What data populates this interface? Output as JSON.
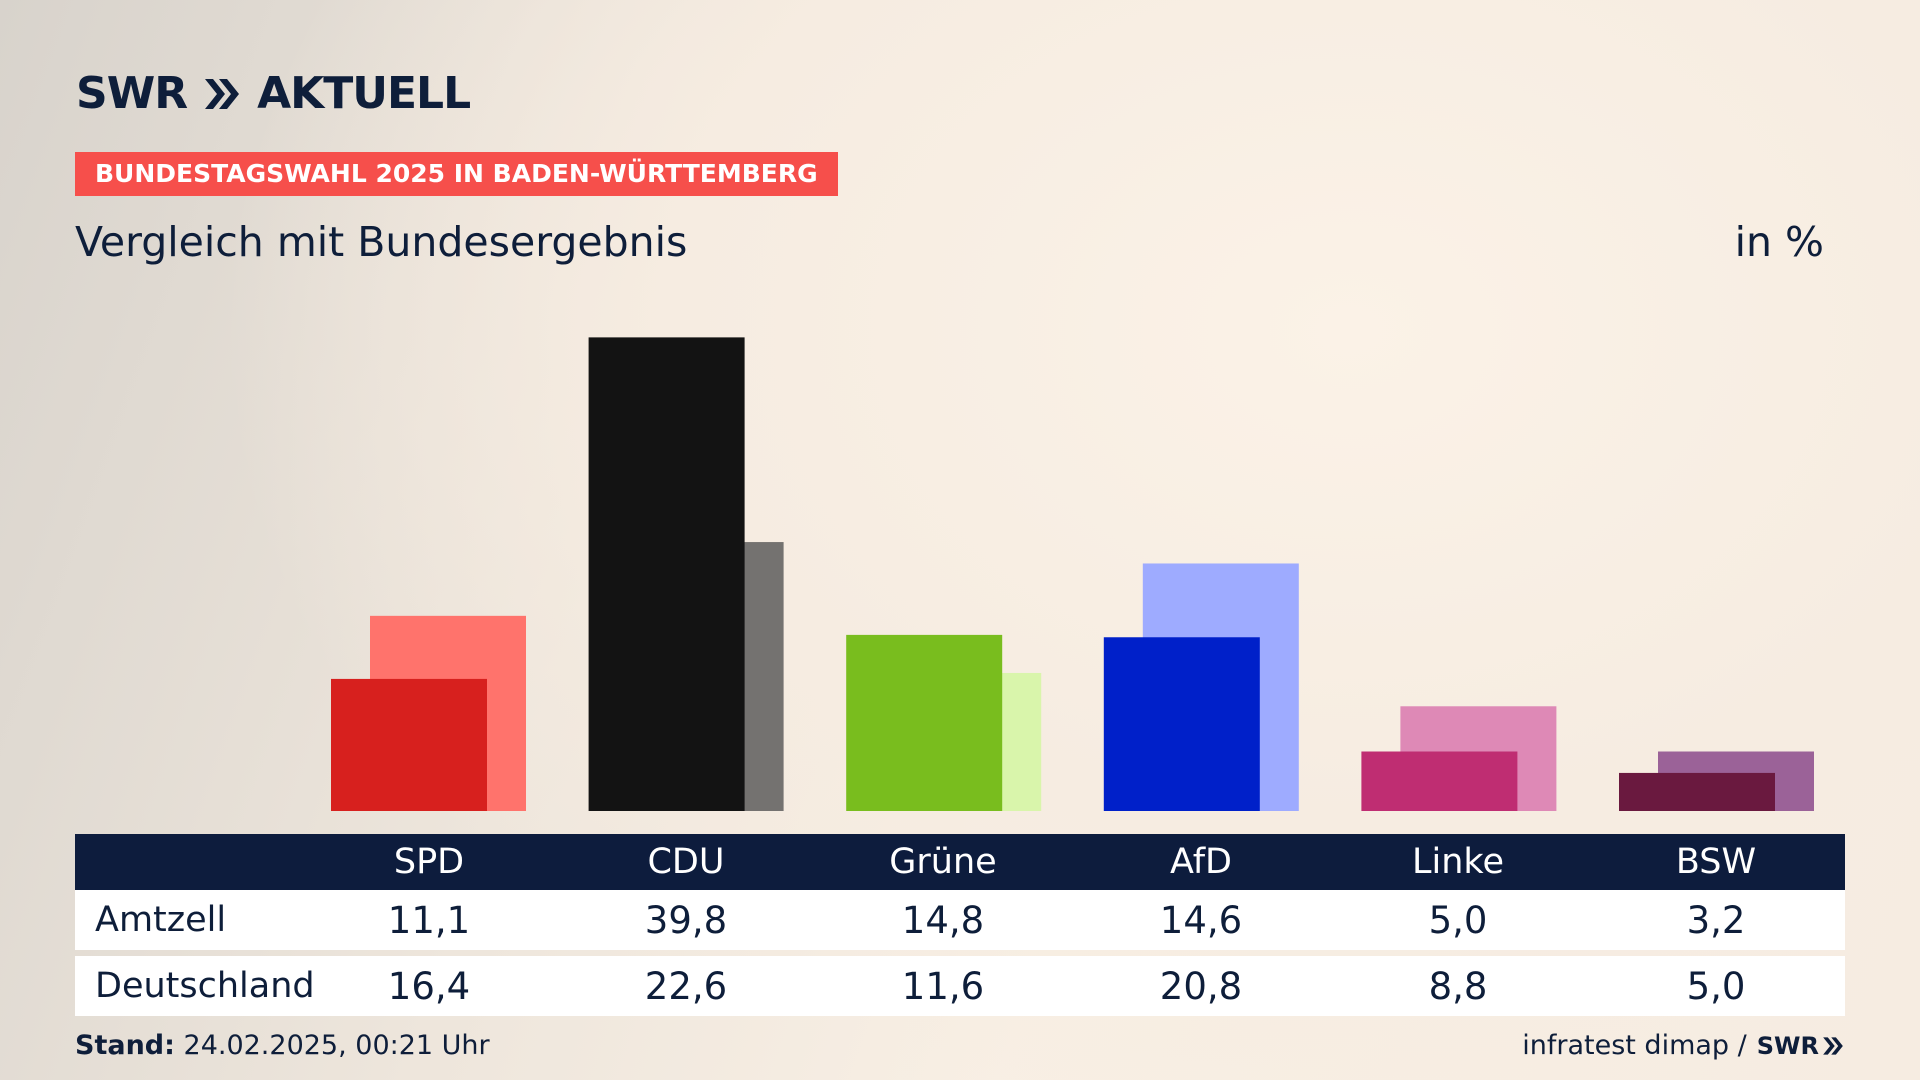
{
  "header": {
    "logo_text": "SWR",
    "logo_suffix": "AKTUELL",
    "election_tag": "BUNDESTAGSWAHL 2025 IN BADEN-WÜRTTEMBERG",
    "subtitle": "Vergleich mit Bundesergebnis",
    "unit": "in %"
  },
  "chart_data": {
    "type": "bar",
    "categories": [
      "SPD",
      "CDU",
      "Grüne",
      "AfD",
      "Linke",
      "BSW"
    ],
    "series": [
      {
        "name": "Amtzell",
        "values": [
          11.1,
          39.8,
          14.8,
          14.6,
          5.0,
          3.2
        ]
      },
      {
        "name": "Deutschland",
        "values": [
          16.4,
          22.6,
          11.6,
          20.8,
          8.8,
          5.0
        ]
      }
    ],
    "colors_local": [
      "#d7201e",
      "#131313",
      "#79bd1e",
      "#0020c9",
      "#bf2d72",
      "#6a193f"
    ],
    "colors_national": [
      "#ff736c",
      "#747270",
      "#d9f5ab",
      "#9eabff",
      "#de89b6",
      "#9b6298"
    ],
    "ylim": [
      0,
      40
    ]
  },
  "table": {
    "rows": [
      {
        "label": "Amtzell",
        "values": [
          "11,1",
          "39,8",
          "14,8",
          "14,6",
          "5,0",
          "3,2"
        ]
      },
      {
        "label": "Deutschland",
        "values": [
          "16,4",
          "22,6",
          "11,6",
          "20,8",
          "8,8",
          "5,0"
        ]
      }
    ]
  },
  "footer": {
    "stand_label": "Stand:",
    "stand_value": "24.02.2025, 00:21 Uhr",
    "source": "infratest dimap /",
    "source_logo": "SWR"
  },
  "colors": {
    "accent": "#f64f4b",
    "navy": "#0d1c3d"
  }
}
